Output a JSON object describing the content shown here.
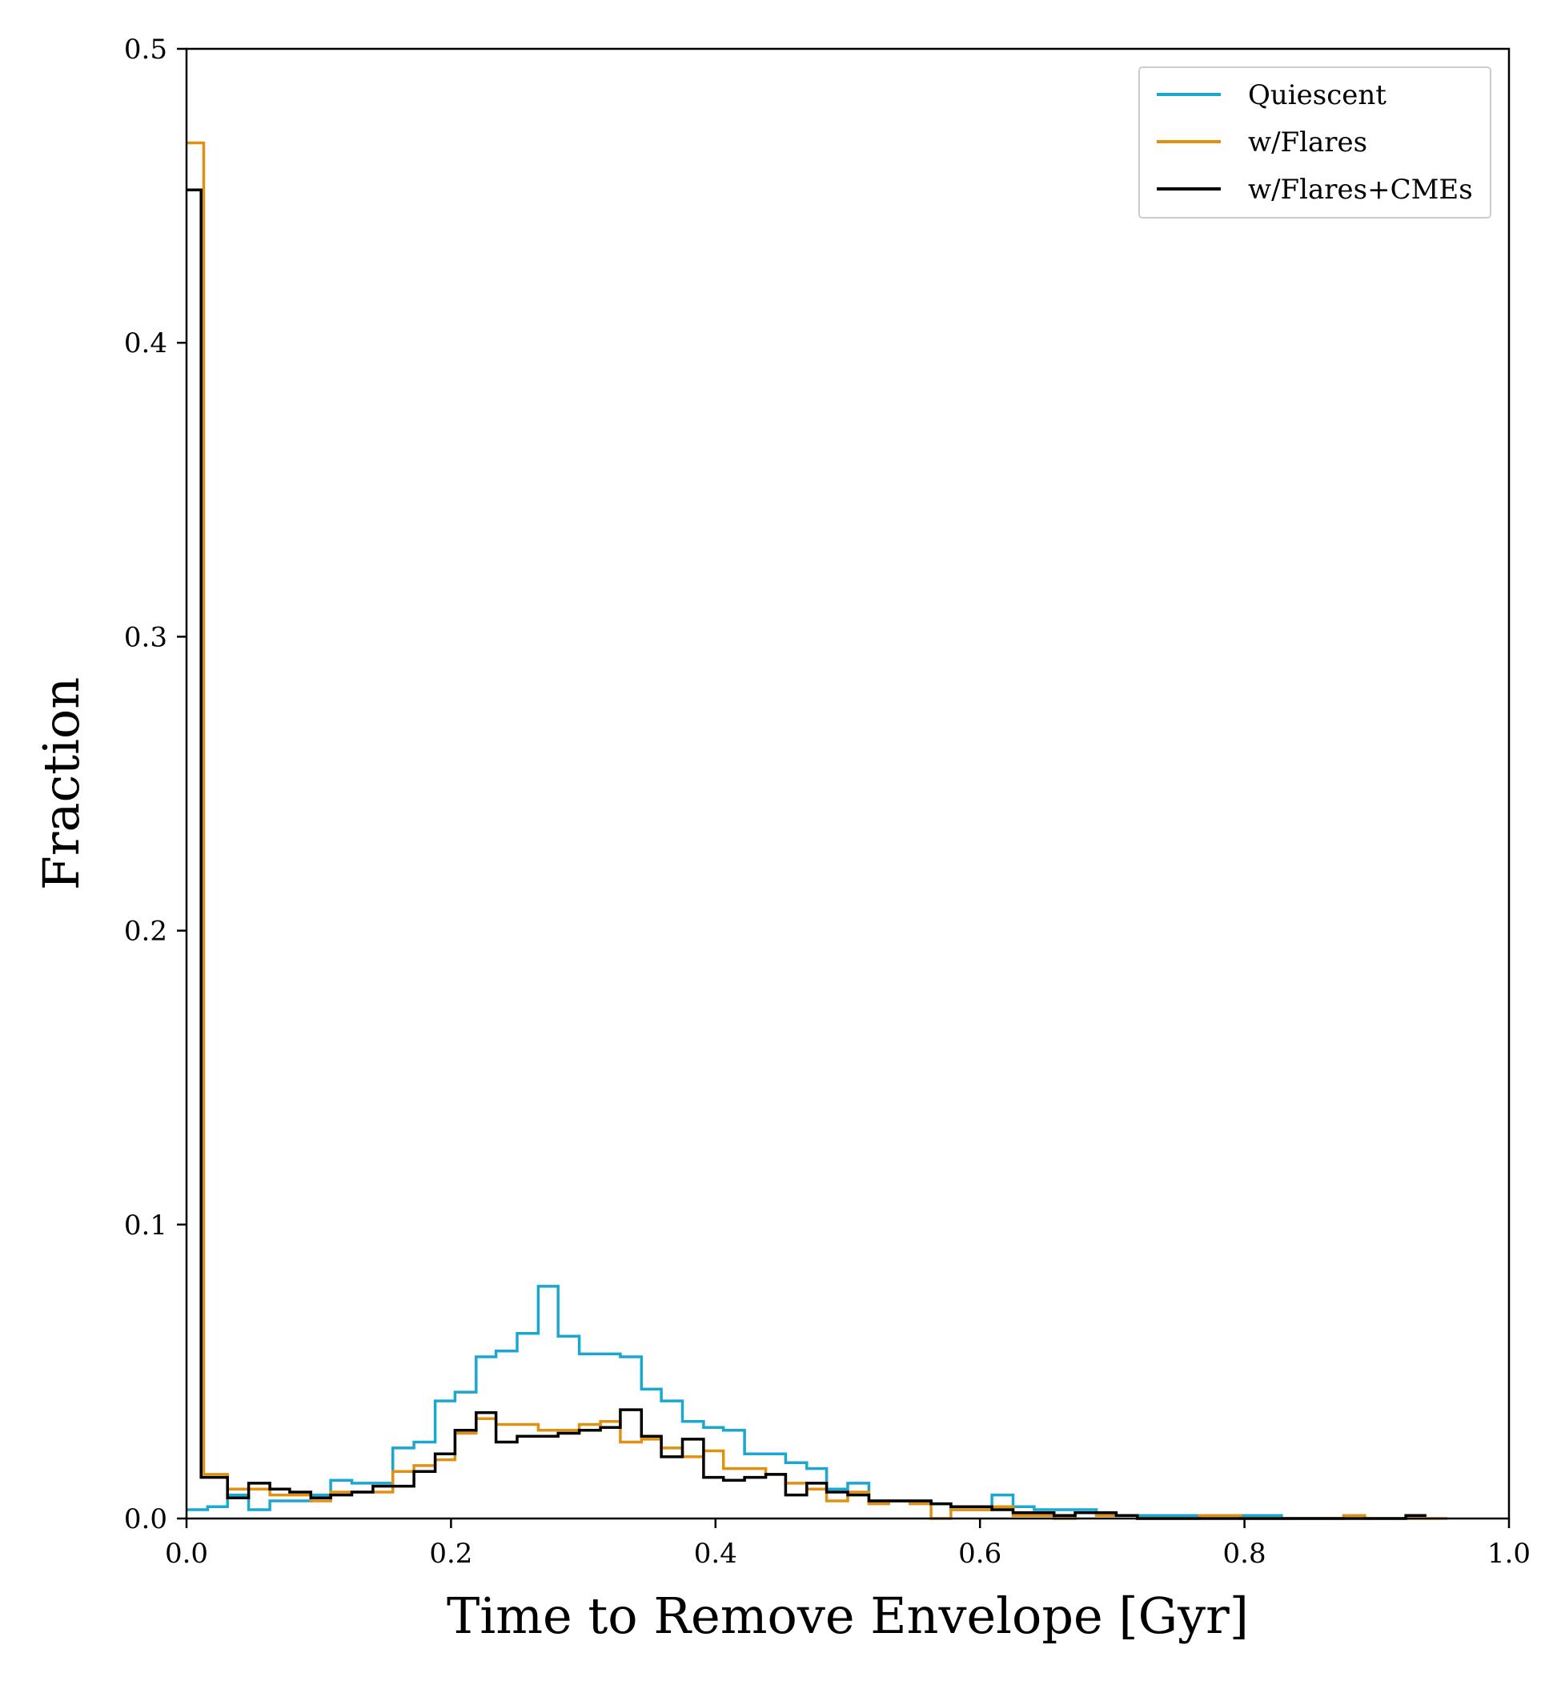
{
  "chart_data": {
    "type": "line",
    "drawstyle": "steps-post",
    "xlabel": "Time to Remove Envelope [Gyr]",
    "ylabel": "Fraction",
    "xlim": [
      0.0,
      1.0
    ],
    "ylim": [
      0.0,
      0.5
    ],
    "xticks": [
      0.0,
      0.2,
      0.4,
      0.6,
      0.8,
      1.0
    ],
    "xtick_labels": [
      "0.0",
      "0.2",
      "0.4",
      "0.6",
      "0.8",
      "1.0"
    ],
    "yticks": [
      0.0,
      0.1,
      0.2,
      0.3,
      0.4,
      0.5
    ],
    "ytick_labels": [
      "0.0",
      "0.1",
      "0.2",
      "0.3",
      "0.4",
      "0.5"
    ],
    "grid": false,
    "legend_position": "top-right",
    "series": [
      {
        "name": "Quiescent",
        "color": "#1aa8d0",
        "x": [
          0.0,
          0.016,
          0.031,
          0.047,
          0.063,
          0.078,
          0.094,
          0.109,
          0.125,
          0.141,
          0.156,
          0.172,
          0.188,
          0.203,
          0.219,
          0.234,
          0.25,
          0.266,
          0.281,
          0.297,
          0.313,
          0.328,
          0.344,
          0.359,
          0.375,
          0.391,
          0.406,
          0.422,
          0.438,
          0.453,
          0.469,
          0.484,
          0.5,
          0.516,
          0.531,
          0.547,
          0.563,
          0.578,
          0.594,
          0.609,
          0.625,
          0.641,
          0.656,
          0.672,
          0.688,
          0.703,
          0.719,
          0.734,
          0.75,
          0.766,
          0.781,
          0.797,
          0.813,
          0.828,
          0.844,
          0.859
        ],
        "y": [
          0.003,
          0.004,
          0.008,
          0.003,
          0.006,
          0.006,
          0.008,
          0.013,
          0.012,
          0.012,
          0.024,
          0.026,
          0.04,
          0.043,
          0.055,
          0.057,
          0.063,
          0.079,
          0.062,
          0.056,
          0.056,
          0.055,
          0.044,
          0.04,
          0.033,
          0.031,
          0.03,
          0.022,
          0.022,
          0.019,
          0.017,
          0.01,
          0.012,
          0.006,
          0.006,
          0.006,
          0.005,
          0.003,
          0.003,
          0.008,
          0.004,
          0.003,
          0.003,
          0.003,
          0.001,
          0.001,
          0.001,
          0.001,
          0.001,
          0.001,
          0.001,
          0.001,
          0.001,
          0.0,
          0.0,
          0.0
        ]
      },
      {
        "name": "w/Flares",
        "color": "#e09112",
        "x": [
          0.0,
          0.013,
          0.031,
          0.047,
          0.063,
          0.078,
          0.094,
          0.109,
          0.125,
          0.141,
          0.156,
          0.172,
          0.188,
          0.203,
          0.219,
          0.234,
          0.25,
          0.266,
          0.281,
          0.297,
          0.313,
          0.328,
          0.344,
          0.359,
          0.375,
          0.391,
          0.406,
          0.422,
          0.438,
          0.453,
          0.469,
          0.484,
          0.5,
          0.516,
          0.531,
          0.547,
          0.563,
          0.578,
          0.594,
          0.609,
          0.625,
          0.641,
          0.656,
          0.672,
          0.688,
          0.703,
          0.719,
          0.734,
          0.75,
          0.766,
          0.781,
          0.797,
          0.813,
          0.828,
          0.844,
          0.859,
          0.875,
          0.891,
          0.906,
          0.922,
          0.938
        ],
        "y": [
          0.468,
          0.015,
          0.01,
          0.01,
          0.008,
          0.008,
          0.006,
          0.009,
          0.009,
          0.009,
          0.016,
          0.018,
          0.02,
          0.029,
          0.034,
          0.032,
          0.032,
          0.03,
          0.03,
          0.032,
          0.033,
          0.026,
          0.027,
          0.024,
          0.021,
          0.023,
          0.017,
          0.017,
          0.015,
          0.012,
          0.01,
          0.006,
          0.009,
          0.005,
          0.006,
          0.005,
          0.0,
          0.003,
          0.003,
          0.004,
          0.001,
          0.001,
          0.0,
          0.002,
          0.001,
          0.001,
          0.0,
          0.0,
          0.0,
          0.001,
          0.001,
          0.0,
          0.0,
          0.0,
          0.0,
          0.0,
          0.001,
          0.0,
          0.0,
          0.0,
          0.0
        ]
      },
      {
        "name": "w/Flares+CMEs",
        "color": "#000000",
        "x": [
          0.0,
          0.011,
          0.031,
          0.047,
          0.063,
          0.078,
          0.094,
          0.109,
          0.125,
          0.141,
          0.156,
          0.172,
          0.188,
          0.203,
          0.219,
          0.234,
          0.25,
          0.266,
          0.281,
          0.297,
          0.313,
          0.328,
          0.344,
          0.359,
          0.375,
          0.391,
          0.406,
          0.422,
          0.438,
          0.453,
          0.469,
          0.484,
          0.5,
          0.516,
          0.531,
          0.547,
          0.563,
          0.578,
          0.594,
          0.609,
          0.625,
          0.641,
          0.656,
          0.672,
          0.688,
          0.703,
          0.719,
          0.734,
          0.75,
          0.766,
          0.781,
          0.797,
          0.813,
          0.828,
          0.844,
          0.859,
          0.875,
          0.891,
          0.906,
          0.922
        ],
        "y": [
          0.452,
          0.014,
          0.007,
          0.012,
          0.01,
          0.009,
          0.007,
          0.008,
          0.009,
          0.011,
          0.011,
          0.016,
          0.022,
          0.03,
          0.036,
          0.026,
          0.028,
          0.028,
          0.029,
          0.03,
          0.031,
          0.037,
          0.028,
          0.021,
          0.027,
          0.014,
          0.013,
          0.014,
          0.015,
          0.008,
          0.012,
          0.009,
          0.008,
          0.006,
          0.006,
          0.006,
          0.005,
          0.004,
          0.004,
          0.003,
          0.002,
          0.002,
          0.001,
          0.002,
          0.002,
          0.001,
          0.0,
          0.0,
          0.0,
          0.0,
          0.0,
          0.0,
          0.0,
          0.0,
          0.0,
          0.0,
          0.0,
          0.0,
          0.0,
          0.001
        ]
      }
    ]
  }
}
